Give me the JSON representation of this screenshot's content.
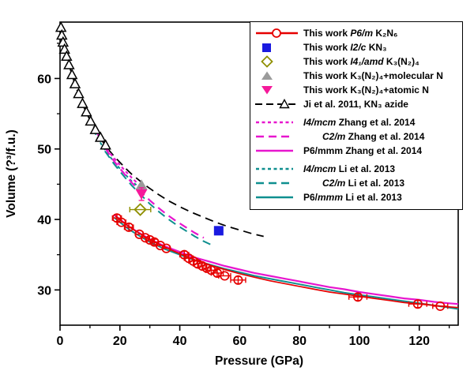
{
  "chart_data": {
    "type": "scatter",
    "title": "",
    "xlabel": "Pressure (GPa)",
    "ylabel": "Volume (?³/f.u.)",
    "xlim": [
      0,
      133
    ],
    "ylim": [
      25,
      68
    ],
    "x_major_ticks": [
      0,
      20,
      40,
      60,
      80,
      100,
      120
    ],
    "x_minor_ticks": [
      10,
      30,
      50,
      70,
      90,
      110,
      130
    ],
    "y_major_ticks": [
      30,
      40,
      50,
      60
    ],
    "y_minor_ticks": [
      35,
      45,
      55,
      65
    ],
    "grid": false,
    "legend_position": "top-right",
    "colors": {
      "red": "#e60000",
      "blue": "#1a1ae0",
      "olive": "#8f8f00",
      "gray": "#9b9b9b",
      "pink": "#f5199a",
      "magenta": "#e716ce",
      "teal": "#0f8f8f",
      "black": "#000000"
    },
    "series": [
      {
        "id": "ji2011-kn3-curve",
        "name": "Ji et al. 2011, KN3 azide",
        "type": "line",
        "color": "#000000",
        "dash": "long",
        "width": 1.8,
        "points": [
          [
            0,
            67.6
          ],
          [
            1,
            65.3
          ],
          [
            2,
            63.5
          ],
          [
            3,
            61.9
          ],
          [
            4,
            60.5
          ],
          [
            5,
            59.2
          ],
          [
            6,
            58.0
          ],
          [
            7,
            56.9
          ],
          [
            8,
            55.9
          ],
          [
            9,
            55.0
          ],
          [
            10,
            54.1
          ],
          [
            11,
            53.3
          ],
          [
            12,
            52.6
          ],
          [
            13,
            51.9
          ],
          [
            14,
            51.2
          ],
          [
            15,
            50.6
          ],
          [
            16,
            50.0
          ],
          [
            17,
            49.5
          ],
          [
            18,
            49.0
          ],
          [
            20,
            48.1
          ],
          [
            22,
            47.2
          ],
          [
            24,
            46.4
          ],
          [
            26,
            45.7
          ],
          [
            28,
            45.0
          ],
          [
            30,
            44.4
          ],
          [
            33,
            43.5
          ],
          [
            36,
            42.7
          ],
          [
            40,
            41.8
          ],
          [
            44,
            41.0
          ],
          [
            48,
            40.3
          ],
          [
            52,
            39.6
          ],
          [
            56,
            39.0
          ],
          [
            60,
            38.5
          ],
          [
            64,
            38.0
          ],
          [
            68,
            37.6
          ]
        ]
      },
      {
        "id": "zhang2014-i4mcm",
        "name": "I4/mcm Zhang et al. 2014",
        "type": "line",
        "color": "#e716ce",
        "dash": "short",
        "width": 2.2,
        "points": [
          [
            11.5,
            52.9
          ],
          [
            14,
            51.0
          ],
          [
            16.5,
            49.5
          ],
          [
            19,
            48.2
          ],
          [
            21.5,
            47.0
          ],
          [
            24,
            45.9
          ],
          [
            25.5,
            45.3
          ]
        ]
      },
      {
        "id": "li2013-i4mcm",
        "name": "I4/mcm Li et al. 2013",
        "type": "line",
        "color": "#0f8f8f",
        "dash": "short",
        "width": 2.0,
        "points": [
          [
            11.5,
            52.4
          ],
          [
            14,
            50.5
          ],
          [
            16.5,
            49.0
          ],
          [
            19,
            47.7
          ],
          [
            21.5,
            46.5
          ],
          [
            24,
            45.4
          ],
          [
            25.5,
            44.9
          ]
        ]
      },
      {
        "id": "zhang2014-c2m",
        "name": "C2/m Zhang et al. 2014",
        "type": "line",
        "color": "#e716ce",
        "dash": "long",
        "width": 2.2,
        "points": [
          [
            15,
            50.2
          ],
          [
            18,
            48.3
          ],
          [
            21,
            46.7
          ],
          [
            24,
            45.2
          ],
          [
            27,
            43.9
          ],
          [
            30,
            42.7
          ],
          [
            33,
            41.6
          ],
          [
            36,
            40.6
          ],
          [
            39,
            39.7
          ],
          [
            42,
            38.9
          ],
          [
            45,
            38.1
          ],
          [
            48,
            37.4
          ]
        ]
      },
      {
        "id": "li2013-c2m",
        "name": "C2/m Li et al. 2013",
        "type": "line",
        "color": "#0f8f8f",
        "dash": "long",
        "width": 2.0,
        "points": [
          [
            15,
            49.7
          ],
          [
            18,
            47.9
          ],
          [
            21,
            46.3
          ],
          [
            24,
            44.8
          ],
          [
            27,
            43.5
          ],
          [
            30,
            42.2
          ],
          [
            33,
            41.1
          ],
          [
            36,
            40.1
          ],
          [
            39,
            39.2
          ],
          [
            42,
            38.4
          ],
          [
            45,
            37.6
          ],
          [
            48,
            36.9
          ],
          [
            51,
            36.3
          ]
        ]
      },
      {
        "id": "zhang2014-p6mmm",
        "name": "P6/mmm Zhang et al. 2014",
        "type": "line",
        "color": "#e716ce",
        "dash": "solid",
        "width": 2.2,
        "points": [
          [
            18,
            40.7
          ],
          [
            20,
            40.0
          ],
          [
            23,
            39.0
          ],
          [
            26,
            38.2
          ],
          [
            30,
            37.2
          ],
          [
            35,
            36.2
          ],
          [
            40,
            35.4
          ],
          [
            45,
            34.6
          ],
          [
            50,
            34.0
          ],
          [
            55,
            33.4
          ],
          [
            60,
            32.9
          ],
          [
            65,
            32.4
          ],
          [
            70,
            32.0
          ],
          [
            75,
            31.6
          ],
          [
            80,
            31.2
          ],
          [
            85,
            30.8
          ],
          [
            90,
            30.4
          ],
          [
            95,
            30.1
          ],
          [
            100,
            29.7
          ],
          [
            105,
            29.4
          ],
          [
            110,
            29.1
          ],
          [
            115,
            28.8
          ],
          [
            120,
            28.6
          ],
          [
            125,
            28.3
          ],
          [
            130,
            28.1
          ],
          [
            133,
            28.0
          ]
        ]
      },
      {
        "id": "li2013-p6mmm",
        "name": "P6/mmm Li et al. 2013",
        "type": "line",
        "color": "#0f8f8f",
        "dash": "solid",
        "width": 2.0,
        "points": [
          [
            18,
            40.3
          ],
          [
            20,
            39.6
          ],
          [
            23,
            38.6
          ],
          [
            26,
            37.8
          ],
          [
            30,
            36.8
          ],
          [
            35,
            35.8
          ],
          [
            40,
            35.0
          ],
          [
            45,
            34.2
          ],
          [
            50,
            33.6
          ],
          [
            55,
            33.0
          ],
          [
            60,
            32.5
          ],
          [
            65,
            32.0
          ],
          [
            70,
            31.6
          ],
          [
            75,
            31.2
          ],
          [
            80,
            30.8
          ],
          [
            85,
            30.4
          ],
          [
            90,
            30.0
          ],
          [
            95,
            29.6
          ],
          [
            100,
            29.3
          ],
          [
            105,
            29.0
          ],
          [
            110,
            28.7
          ],
          [
            115,
            28.4
          ],
          [
            120,
            28.1
          ],
          [
            125,
            27.8
          ],
          [
            130,
            27.5
          ],
          [
            133,
            27.3
          ]
        ]
      },
      {
        "id": "thiswork-p6m-k2n6-fit",
        "name": "This work P6/m K2N6 (fit)",
        "type": "line",
        "color": "#e60000",
        "dash": "solid",
        "width": 1.7,
        "points": [
          [
            18.5,
            40.5
          ],
          [
            21,
            39.6
          ],
          [
            24,
            38.7
          ],
          [
            27,
            37.9
          ],
          [
            30,
            37.1
          ],
          [
            34,
            36.3
          ],
          [
            38,
            35.5
          ],
          [
            42,
            34.8
          ],
          [
            46,
            34.1
          ],
          [
            50,
            33.5
          ],
          [
            55,
            32.9
          ],
          [
            60,
            32.3
          ],
          [
            65,
            31.8
          ],
          [
            70,
            31.3
          ],
          [
            75,
            30.9
          ],
          [
            80,
            30.5
          ],
          [
            85,
            30.1
          ],
          [
            90,
            29.7
          ],
          [
            95,
            29.4
          ],
          [
            100,
            29.1
          ],
          [
            105,
            28.8
          ],
          [
            110,
            28.5
          ],
          [
            115,
            28.2
          ],
          [
            120,
            28.0
          ],
          [
            125,
            27.8
          ],
          [
            130,
            27.6
          ],
          [
            133,
            27.5
          ]
        ]
      },
      {
        "id": "ji2011-kn3-markers",
        "name": "Ji et al. 2011, KN3 azide (points)",
        "type": "scatter",
        "marker": "triangle-up-open",
        "color": "#000000",
        "points": [
          [
            0.3,
            67.2,
            0,
            0
          ],
          [
            0.6,
            66.1,
            0,
            0
          ],
          [
            1.0,
            65.1,
            0,
            0
          ],
          [
            1.5,
            64.1,
            0,
            0
          ],
          [
            2.2,
            63.1,
            0,
            0
          ],
          [
            3.0,
            61.9,
            0,
            0
          ],
          [
            4.0,
            60.5,
            0,
            0
          ],
          [
            5.0,
            59.2,
            0,
            0
          ],
          [
            6.2,
            57.8,
            0,
            0
          ],
          [
            7.5,
            56.4,
            0,
            0
          ],
          [
            8.8,
            55.2,
            0,
            0
          ],
          [
            10.2,
            53.9,
            0,
            0
          ],
          [
            11.8,
            52.7,
            0,
            0
          ],
          [
            13.5,
            51.6,
            0,
            0
          ],
          [
            15.2,
            50.5,
            0,
            0
          ]
        ]
      },
      {
        "id": "thiswork-p6m-k2n6",
        "name": "This work P6/m K2N6",
        "type": "scatter",
        "marker": "circle-open",
        "color": "#e60000",
        "points": [
          [
            19,
            40.2,
            1.5,
            0.5
          ],
          [
            20.5,
            39.6,
            1.5,
            0
          ],
          [
            23,
            38.9,
            1.5,
            0.5
          ],
          [
            26.5,
            37.9,
            1.2,
            0
          ],
          [
            28.5,
            37.4,
            1.2,
            0
          ],
          [
            30,
            37.1,
            1.2,
            0
          ],
          [
            31.5,
            36.8,
            1.2,
            0.4
          ],
          [
            33.5,
            36.3,
            1.2,
            0
          ],
          [
            35.5,
            35.9,
            1.2,
            0
          ],
          [
            41.5,
            35.0,
            1.5,
            0.5
          ],
          [
            43,
            34.5,
            1.5,
            0
          ],
          [
            44.5,
            34.1,
            1.5,
            0
          ],
          [
            46,
            33.7,
            1.5,
            0.5
          ],
          [
            47.5,
            33.4,
            1.5,
            0
          ],
          [
            49,
            33.1,
            1.5,
            0
          ],
          [
            50.5,
            32.8,
            1.8,
            0
          ],
          [
            52.5,
            32.4,
            2,
            0.5
          ],
          [
            55,
            32.0,
            2,
            0
          ],
          [
            59.5,
            31.4,
            2.5,
            0.5
          ],
          [
            99.5,
            29.0,
            3,
            0.5
          ],
          [
            119.5,
            28.0,
            3,
            0.5
          ],
          [
            127,
            27.7,
            2.5,
            0
          ]
        ]
      },
      {
        "id": "thiswork-i41amd-k3n24",
        "name": "This work I41/amd K3(N2)4",
        "type": "scatter",
        "marker": "diamond-open",
        "color": "#8f8f00",
        "points": [
          [
            26.8,
            41.4,
            3.5,
            0
          ]
        ]
      },
      {
        "id": "thiswork-molecular-n",
        "name": "This work K3(N2)4+molecular N",
        "type": "scatter",
        "marker": "triangle-up",
        "color": "#9b9b9b",
        "points": [
          [
            27.2,
            44.9,
            0,
            0
          ]
        ]
      },
      {
        "id": "thiswork-atomic-n",
        "name": "This work K3(N2)4+atomic N",
        "type": "scatter",
        "marker": "triangle-down",
        "color": "#f5199a",
        "points": [
          [
            27.2,
            43.6,
            0,
            0.9
          ]
        ]
      },
      {
        "id": "thiswork-i2c-kn3",
        "name": "This work I2/c KN3",
        "type": "scatter",
        "marker": "square",
        "color": "#1a1ae0",
        "points": [
          [
            53,
            38.4,
            0,
            0
          ]
        ]
      }
    ]
  },
  "legend": {
    "entries": [
      {
        "label": "This work *P6/m* K₂N₆",
        "swatch": "line+circle-open",
        "color": "#e60000"
      },
      {
        "label": "This work *I2/c* KN₃",
        "swatch": "square",
        "color": "#1a1ae0"
      },
      {
        "label": "This work *I4₁/amd* K₃(N₂)₄",
        "swatch": "diamond-open",
        "color": "#8f8f00"
      },
      {
        "label": "This work K₃(N₂)₄+molecular N",
        "swatch": "triangle-up",
        "color": "#9b9b9b"
      },
      {
        "label": "This work K₃(N₂)₄+atomic N",
        "swatch": "triangle-down",
        "color": "#f5199a"
      },
      {
        "label": "Ji et al. 2011, KN₃ azide",
        "swatch": "dash+triangle-open",
        "color": "#000000"
      },
      {
        "label": "*I4/mcm* Zhang et al. 2014",
        "swatch": "dash-short",
        "color": "#e716ce",
        "group_gap": true
      },
      {
        "label": "*C2/m* Zhang et al. 2014",
        "swatch": "dash-long",
        "color": "#e716ce",
        "indent": true
      },
      {
        "label": "P6/mmm Zhang et al. 2014",
        "swatch": "line",
        "color": "#e716ce"
      },
      {
        "label": "*I4/mcm* Li et al. 2013",
        "swatch": "dash-short",
        "color": "#0f8f8f",
        "group_gap": true
      },
      {
        "label": "*C2/m* Li et al. 2013",
        "swatch": "dash-long",
        "color": "#0f8f8f",
        "indent": true
      },
      {
        "label": "P6/*mmm* Li et al. 2013",
        "swatch": "line",
        "color": "#0f8f8f"
      }
    ]
  }
}
